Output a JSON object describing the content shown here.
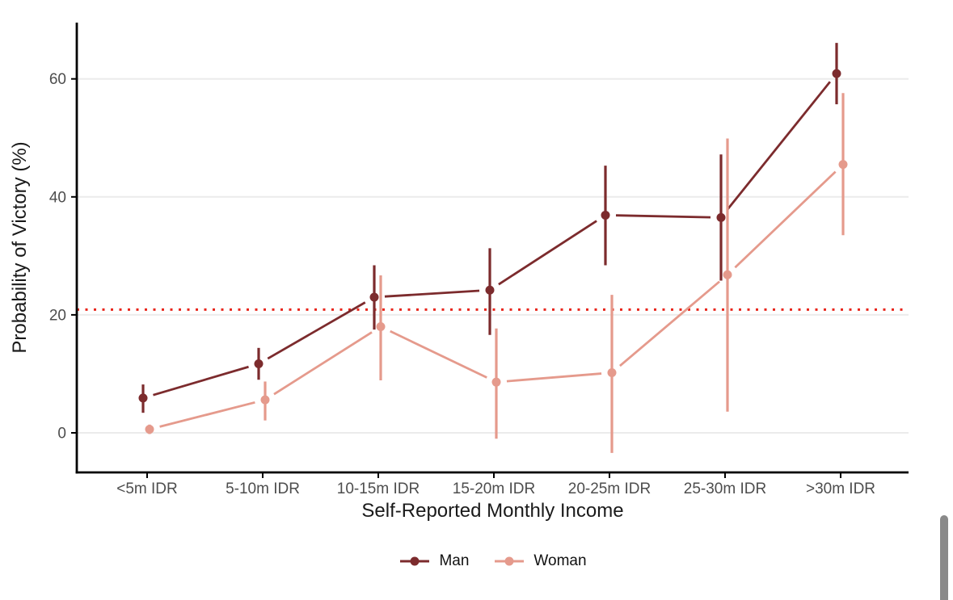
{
  "chart_data": {
    "type": "line",
    "subtype": "pointrange-with-ci",
    "title": "",
    "xlabel": "Self-Reported Monthly Income",
    "ylabel": "Probability of Victory (%)",
    "categories": [
      "<5m IDR",
      "5-10m IDR",
      "10-15m IDR",
      "15-20m IDR",
      "20-25m IDR",
      "25-30m IDR",
      ">30m IDR"
    ],
    "y_ticks": [
      0,
      20,
      40,
      60
    ],
    "y_tick_labels": [
      "0",
      "20",
      "40",
      "60"
    ],
    "ylim": [
      -6.7,
      69.5
    ],
    "grid": "horizontal-only",
    "legend_position": "bottom-center",
    "reference_line": {
      "value": 20.9,
      "style": "dotted",
      "color": "#e8251b"
    },
    "series": [
      {
        "name": "Man",
        "color": "#7c2b2d",
        "values": [
          5.9,
          11.7,
          23.0,
          24.2,
          36.9,
          36.5,
          60.9
        ],
        "ci_low": [
          3.4,
          9.0,
          17.5,
          16.6,
          28.4,
          25.8,
          55.7
        ],
        "ci_high": [
          8.2,
          14.4,
          28.4,
          31.3,
          45.3,
          47.2,
          66.1
        ]
      },
      {
        "name": "Woman",
        "color": "#e59a8c",
        "values": [
          0.6,
          5.6,
          18.0,
          8.6,
          10.2,
          26.8,
          45.5
        ],
        "ci_low": [
          -0.2,
          2.1,
          8.9,
          -1.0,
          -3.4,
          3.6,
          33.5
        ],
        "ci_high": [
          1.4,
          8.7,
          26.7,
          17.7,
          23.4,
          49.9,
          57.6
        ]
      }
    ],
    "colors": {
      "axis": "#000000",
      "tick_label": "#4d4d4d",
      "axis_title": "#1a1a1a",
      "gridline": "#ebebeb",
      "background": "#ffffff"
    }
  }
}
